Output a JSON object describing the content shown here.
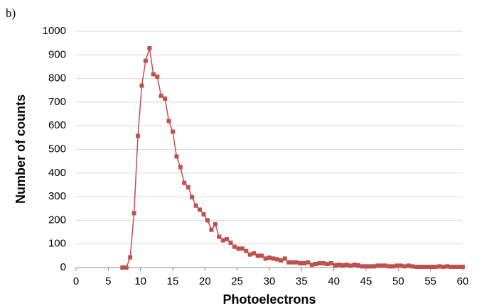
{
  "chart_data": {
    "type": "line",
    "label": "b)",
    "xlabel": "Photoelectrons",
    "ylabel": "Number of counts",
    "x": [
      7.2,
      7.8,
      8.4,
      9.0,
      9.6,
      10.2,
      10.8,
      11.4,
      12.0,
      12.6,
      13.2,
      13.8,
      14.4,
      15.0,
      15.6,
      16.2,
      16.8,
      17.4,
      18.0,
      18.6,
      19.2,
      19.8,
      20.4,
      21.0,
      21.6,
      22.2,
      22.8,
      23.4,
      24.0,
      24.6,
      25.2,
      25.8,
      26.4,
      27.0,
      27.6,
      28.2,
      28.8,
      29.4,
      30.0,
      30.6,
      31.2,
      31.8,
      32.4,
      33.0,
      33.6,
      34.2,
      34.8,
      35.4,
      36.0,
      36.6,
      37.2,
      37.8,
      38.4,
      39.0,
      39.6,
      40.2,
      40.8,
      41.4,
      42.0,
      42.6,
      43.2,
      43.8,
      44.4,
      45.0,
      45.6,
      46.2,
      46.8,
      47.4,
      48.0,
      48.6,
      49.2,
      49.8,
      50.4,
      51.0,
      51.6,
      52.2,
      52.8,
      53.4,
      54.0,
      54.6,
      55.2,
      55.8,
      56.4,
      57.0,
      57.6,
      58.2,
      58.8,
      59.4,
      60.0
    ],
    "series": [
      {
        "color": "#c0504d",
        "values": [
          0,
          0,
          43,
          230,
          557,
          770,
          875,
          928,
          818,
          808,
          727,
          715,
          620,
          575,
          470,
          425,
          358,
          340,
          298,
          262,
          245,
          225,
          200,
          160,
          183,
          130,
          115,
          120,
          105,
          88,
          80,
          80,
          70,
          55,
          60,
          50,
          50,
          38,
          42,
          38,
          35,
          30,
          38,
          22,
          22,
          22,
          18,
          18,
          22,
          12,
          15,
          18,
          18,
          15,
          18,
          10,
          12,
          10,
          12,
          8,
          12,
          10,
          5,
          5,
          5,
          5,
          8,
          8,
          8,
          5,
          5,
          8,
          8,
          5,
          8,
          5,
          3,
          3,
          3,
          3,
          3,
          3,
          5,
          3,
          5,
          3,
          3,
          3,
          3
        ]
      }
    ],
    "xlim": [
      0,
      60
    ],
    "xticks": [
      0,
      5,
      10,
      15,
      20,
      25,
      30,
      35,
      40,
      45,
      50,
      55,
      60
    ],
    "ylim": [
      0,
      1000
    ],
    "yticks": [
      0,
      100,
      200,
      300,
      400,
      500,
      600,
      700,
      800,
      900,
      1000
    ],
    "grid": true
  }
}
